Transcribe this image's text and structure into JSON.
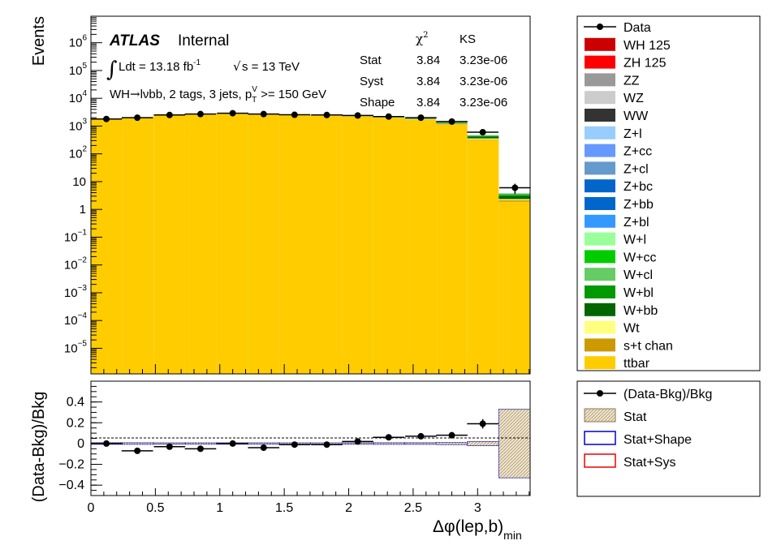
{
  "chart_data": [
    {
      "type": "bar",
      "stacked": true,
      "x_bin_edges": [
        0,
        0.2434,
        0.4868,
        0.7302,
        0.9736,
        1.217,
        1.4604,
        1.7038,
        1.9472,
        2.1906,
        2.434,
        2.6774,
        2.9208,
        3.1642,
        3.4076
      ],
      "data_points": {
        "name": "Data",
        "x": [
          0.12,
          0.36,
          0.61,
          0.85,
          1.1,
          1.34,
          1.58,
          1.83,
          2.07,
          2.31,
          2.56,
          2.8,
          3.04,
          3.29
        ],
        "y": [
          1800,
          2000,
          2500,
          2700,
          2900,
          2700,
          2550,
          2500,
          2400,
          2200,
          2000,
          1450,
          600,
          6
        ],
        "yerr": [
          42,
          45,
          50,
          52,
          54,
          52,
          50,
          50,
          49,
          47,
          45,
          38,
          25,
          2.4
        ]
      },
      "series": [
        {
          "name": "ttbar",
          "color": "#ffcc00",
          "values": [
            1720,
            1930,
            2380,
            2560,
            2720,
            2530,
            2400,
            2330,
            2200,
            1980,
            1700,
            1150,
            320,
            1.9
          ]
        },
        {
          "name": "s+t chan",
          "color": "#cc9900",
          "values": [
            20,
            22,
            26,
            28,
            30,
            28,
            27,
            27,
            27,
            27,
            27,
            26,
            14,
            0.25
          ]
        },
        {
          "name": "Wt",
          "color": "#ffff7f",
          "values": [
            40,
            45,
            55,
            60,
            65,
            60,
            55,
            55,
            55,
            55,
            55,
            50,
            25,
            0.2
          ]
        },
        {
          "name": "W+bb",
          "color": "#006600",
          "values": [
            25,
            27,
            33,
            36,
            38,
            36,
            34,
            34,
            36,
            40,
            50,
            70,
            55,
            0.7
          ]
        },
        {
          "name": "W+bl",
          "color": "#009900",
          "values": [
            10,
            11,
            13,
            14,
            15,
            14,
            14,
            14,
            15,
            18,
            22,
            30,
            25,
            0.3
          ]
        },
        {
          "name": "W+cl",
          "color": "#66cc66",
          "values": [
            4,
            4,
            5,
            5,
            5,
            5,
            5,
            5,
            6,
            7,
            9,
            12,
            10,
            0.1
          ]
        },
        {
          "name": "W+cc",
          "color": "#00cc00",
          "values": [
            6,
            7,
            8,
            8,
            9,
            8,
            8,
            8,
            9,
            11,
            14,
            20,
            18,
            0.2
          ]
        },
        {
          "name": "W+l",
          "color": "#99ff99",
          "values": [
            2,
            2,
            3,
            3,
            3,
            3,
            3,
            3,
            3,
            4,
            5,
            6,
            5,
            0.05
          ]
        },
        {
          "name": "Z+bl",
          "color": "#3399ff",
          "values": [
            0.3,
            0.3,
            0.4,
            0.4,
            0.4,
            0.4,
            0.4,
            0.4,
            0.4,
            0.4,
            0.5,
            0.5,
            0.3,
            0.01
          ]
        },
        {
          "name": "Z+bb",
          "color": "#0066cc",
          "values": [
            1,
            1,
            1,
            1,
            1,
            1,
            1,
            1,
            1,
            1,
            1,
            1,
            0.6,
            0.02
          ]
        },
        {
          "name": "Z+bc",
          "color": "#0066cc",
          "values": [
            0.2,
            0.2,
            0.2,
            0.2,
            0.2,
            0.2,
            0.2,
            0.2,
            0.2,
            0.2,
            0.2,
            0.2,
            0.1,
            0.005
          ]
        },
        {
          "name": "Z+cl",
          "color": "#6699cc",
          "values": [
            0.1,
            0.1,
            0.1,
            0.1,
            0.1,
            0.1,
            0.1,
            0.1,
            0.1,
            0.1,
            0.1,
            0.1,
            0.05,
            0.002
          ]
        },
        {
          "name": "Z+cc",
          "color": "#6699ff",
          "values": [
            0.2,
            0.2,
            0.2,
            0.2,
            0.2,
            0.2,
            0.2,
            0.2,
            0.2,
            0.2,
            0.2,
            0.2,
            0.1,
            0.005
          ]
        },
        {
          "name": "Z+l",
          "color": "#99ccff",
          "values": [
            0.1,
            0.1,
            0.1,
            0.1,
            0.1,
            0.1,
            0.1,
            0.1,
            0.1,
            0.1,
            0.1,
            0.1,
            0.05,
            0.002
          ]
        },
        {
          "name": "WW",
          "color": "#333333",
          "values": [
            0.5,
            0.5,
            0.6,
            0.6,
            0.7,
            0.6,
            0.6,
            0.6,
            0.6,
            0.6,
            0.7,
            0.7,
            0.4,
            0.01
          ]
        },
        {
          "name": "WZ",
          "color": "#cccccc",
          "values": [
            1,
            1,
            1.2,
            1.3,
            1.4,
            1.3,
            1.3,
            1.3,
            1.3,
            1.4,
            1.5,
            1.6,
            1,
            0.02
          ]
        },
        {
          "name": "ZZ",
          "color": "#999999",
          "values": [
            0.1,
            0.1,
            0.1,
            0.1,
            0.1,
            0.1,
            0.1,
            0.1,
            0.1,
            0.1,
            0.1,
            0.1,
            0.05,
            0.002
          ]
        },
        {
          "name": "ZH 125",
          "color": "#ff0000",
          "values": [
            0.02,
            0.02,
            0.02,
            0.02,
            0.02,
            0.02,
            0.02,
            0.02,
            0.02,
            0.03,
            0.03,
            0.04,
            0.03,
            0.001
          ]
        },
        {
          "name": "WH 125",
          "color": "#cc0000",
          "values": [
            0.3,
            0.3,
            0.4,
            0.4,
            0.4,
            0.4,
            0.4,
            0.4,
            0.5,
            0.6,
            0.8,
            1.0,
            0.8,
            0.01
          ]
        }
      ],
      "legend_labels": [
        "Data",
        "WH 125",
        "ZH 125",
        "ZZ",
        "WZ",
        "WW",
        "Z+l",
        "Z+cc",
        "Z+cl",
        "Z+bc",
        "Z+bb",
        "Z+bl",
        "W+l",
        "W+cc",
        "W+cl",
        "W+bl",
        "W+bb",
        "Wt",
        "s+t chan",
        "ttbar"
      ],
      "legend_placement": "right, outside plot",
      "ylabel": "Events",
      "y_scale": "log",
      "ylim": [
        1.2e-06,
        9000000
      ],
      "y_ticks": [
        {
          "base": "10",
          "exp": "6"
        },
        {
          "base": "10",
          "exp": "5"
        },
        {
          "base": "10",
          "exp": "4"
        },
        {
          "base": "10",
          "exp": "3"
        },
        {
          "base": "10",
          "exp": "2"
        },
        {
          "base": "10",
          "exp": ""
        },
        {
          "base": "1",
          "exp": ""
        },
        {
          "base": "10",
          "exp": "−1"
        },
        {
          "base": "10",
          "exp": "−2"
        },
        {
          "base": "10",
          "exp": "−3"
        },
        {
          "base": "10",
          "exp": "−4"
        },
        {
          "base": "10",
          "exp": "−5"
        }
      ],
      "xlim": [
        0,
        3.4076
      ],
      "annotations": {
        "atlas": "ATLAS",
        "internal": "Internal",
        "lumi_text": "Ldt = 13.18 fb",
        "lumi_exp": "-1",
        "energy_text": "s = 13 TeV",
        "region_a": "WH",
        "region_arrow": "→",
        "region_b": "lνbb, 2 tags, 3 jets, p",
        "region_sub": "T",
        "region_sup": "V",
        "region_c": " >= 150 GeV"
      },
      "stats_table": {
        "headers": [
          "χ",
          "2",
          "KS"
        ],
        "rows": [
          {
            "label": "Stat",
            "chi2": "3.84",
            "ks": "3.23e-06"
          },
          {
            "label": "Syst",
            "chi2": "3.84",
            "ks": "3.23e-06"
          },
          {
            "label": "Shape",
            "chi2": "3.84",
            "ks": "3.23e-06"
          }
        ]
      }
    },
    {
      "type": "scatter",
      "name": "(Data-Bkg)/Bkg",
      "x": [
        0.12,
        0.36,
        0.61,
        0.85,
        1.1,
        1.34,
        1.58,
        1.83,
        2.07,
        2.31,
        2.56,
        2.8,
        3.04
      ],
      "y": [
        0.0,
        -0.07,
        -0.03,
        -0.05,
        0.0,
        -0.04,
        -0.01,
        -0.01,
        0.02,
        0.06,
        0.07,
        0.08,
        0.19
      ],
      "yerr": [
        0.024,
        0.022,
        0.02,
        0.019,
        0.019,
        0.019,
        0.02,
        0.02,
        0.02,
        0.021,
        0.022,
        0.026,
        0.045
      ],
      "stat_band_halfwidth": [
        0.008,
        0.008,
        0.007,
        0.007,
        0.007,
        0.007,
        0.007,
        0.007,
        0.007,
        0.008,
        0.008,
        0.01,
        0.02,
        0.33
      ],
      "ylabel": "(Data-Bkg)/Bkg",
      "xlabel": "Δφ(lep,b)",
      "xlabel_sub": "min",
      "ylim": [
        -0.5,
        0.6
      ],
      "y_ticks": [
        "0.4",
        "0.2",
        "0",
        "−0.2",
        "−0.4"
      ],
      "x_ticks": [
        "0",
        "0.5",
        "1",
        "1.5",
        "2",
        "2.5",
        "3"
      ],
      "legend": [
        {
          "label": "(Data-Bkg)/Bkg"
        },
        {
          "label": "Stat",
          "color": "#e8d8b8"
        },
        {
          "label": "Stat+Shape",
          "color": "#0000cc"
        },
        {
          "label": "Stat+Sys",
          "color": "#ee0000"
        }
      ]
    }
  ]
}
